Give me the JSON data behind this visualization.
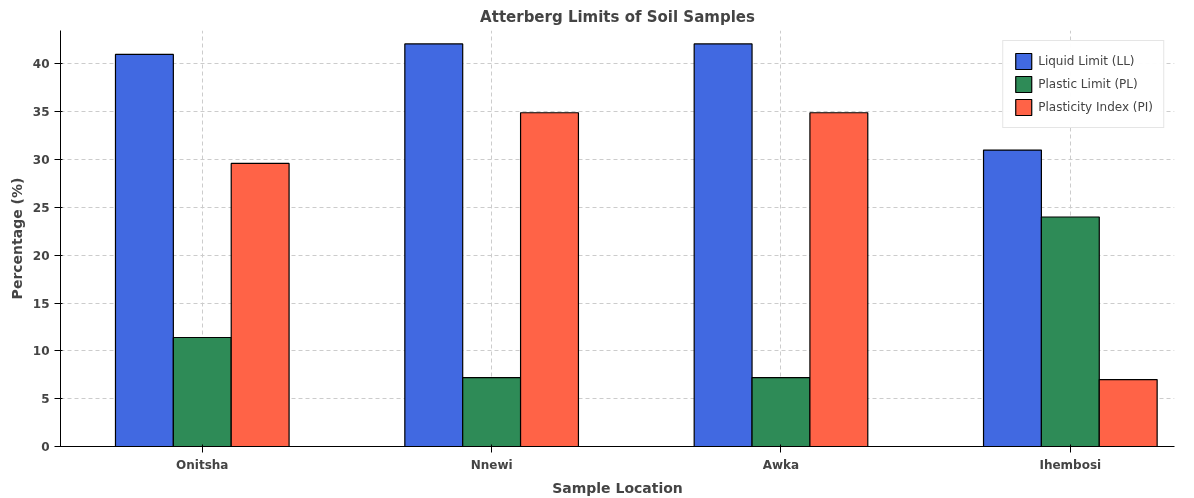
{
  "chart_data": {
    "type": "bar",
    "title": "Atterberg Limits of Soil Samples",
    "xlabel": "Sample Location",
    "ylabel": "Percentage (%)",
    "categories": [
      "Onitsha",
      "Nnewi",
      "Awka",
      "Ihembosi"
    ],
    "series": [
      {
        "name": "Liquid Limit (LL)",
        "color": "#4169e1",
        "values": [
          41,
          42.1,
          42.1,
          31
        ]
      },
      {
        "name": "Plastic Limit (PL)",
        "color": "#2e8b57",
        "values": [
          11.4,
          7.2,
          7.2,
          24
        ]
      },
      {
        "name": "Plasticity Index (PI)",
        "color": "#ff6347",
        "values": [
          29.6,
          34.9,
          34.9,
          7
        ]
      }
    ],
    "ylim": [
      0,
      43.5
    ],
    "yticks": [
      0,
      5,
      10,
      15,
      20,
      25,
      30,
      35,
      40
    ],
    "grid": true,
    "legend": "top right"
  }
}
